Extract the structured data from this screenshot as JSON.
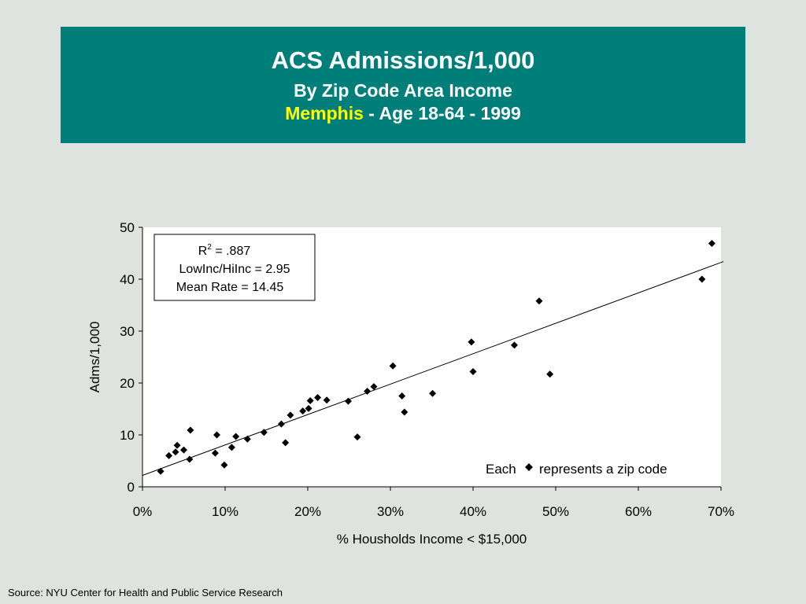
{
  "banner": {
    "title": "ACS Admissions/1,000",
    "subtitle": "By Zip Code Area Income",
    "city": "Memphis",
    "detail": " - Age 18-64 - 1999"
  },
  "source": "Source:  NYU Center for Health and Public Service Research",
  "colors": {
    "banner_bg": "#007f7a",
    "city_text": "#ffff00",
    "page_bg": "#dfe3df"
  },
  "chart_data": {
    "type": "scatter",
    "xlabel": "% Housholds Income < $15,000",
    "ylabel": "Adms/1,000",
    "xlim": [
      0,
      0.7
    ],
    "ylim": [
      0,
      50
    ],
    "x_ticks": [
      "0%",
      "10%",
      "20%",
      "30%",
      "40%",
      "50%",
      "60%",
      "70%"
    ],
    "y_ticks": [
      "0",
      "10",
      "20",
      "30",
      "40",
      "50"
    ],
    "grid": false,
    "points": [
      {
        "x": 0.022,
        "y": 3.0
      },
      {
        "x": 0.032,
        "y": 6.0
      },
      {
        "x": 0.04,
        "y": 6.7
      },
      {
        "x": 0.042,
        "y": 8.0
      },
      {
        "x": 0.05,
        "y": 7.1
      },
      {
        "x": 0.057,
        "y": 5.3
      },
      {
        "x": 0.058,
        "y": 10.9
      },
      {
        "x": 0.088,
        "y": 6.5
      },
      {
        "x": 0.09,
        "y": 10.0
      },
      {
        "x": 0.099,
        "y": 4.2
      },
      {
        "x": 0.108,
        "y": 7.6
      },
      {
        "x": 0.113,
        "y": 9.7
      },
      {
        "x": 0.127,
        "y": 9.2
      },
      {
        "x": 0.147,
        "y": 10.5
      },
      {
        "x": 0.168,
        "y": 12.1
      },
      {
        "x": 0.173,
        "y": 8.5
      },
      {
        "x": 0.179,
        "y": 13.8
      },
      {
        "x": 0.194,
        "y": 14.6
      },
      {
        "x": 0.201,
        "y": 15.1
      },
      {
        "x": 0.203,
        "y": 16.6
      },
      {
        "x": 0.212,
        "y": 17.2
      },
      {
        "x": 0.223,
        "y": 16.7
      },
      {
        "x": 0.249,
        "y": 16.5
      },
      {
        "x": 0.26,
        "y": 9.6
      },
      {
        "x": 0.272,
        "y": 18.4
      },
      {
        "x": 0.28,
        "y": 19.3
      },
      {
        "x": 0.303,
        "y": 23.3
      },
      {
        "x": 0.314,
        "y": 17.5
      },
      {
        "x": 0.317,
        "y": 14.4
      },
      {
        "x": 0.351,
        "y": 18.0
      },
      {
        "x": 0.398,
        "y": 27.9
      },
      {
        "x": 0.4,
        "y": 22.2
      },
      {
        "x": 0.45,
        "y": 27.3
      },
      {
        "x": 0.48,
        "y": 35.8
      },
      {
        "x": 0.493,
        "y": 21.7
      },
      {
        "x": 0.677,
        "y": 40.0
      },
      {
        "x": 0.689,
        "y": 46.9
      }
    ],
    "trendline": {
      "x": [
        0.0,
        0.703
      ],
      "y": [
        2.2,
        43.4
      ]
    },
    "stats_box": {
      "r2_prefix": "R",
      "r2_sup": "2",
      "r2_value": " = .887",
      "ratio": "LowInc/HiInc = 2.95",
      "mean": "Mean Rate = 14.45"
    },
    "note_left": "Each",
    "note_right": "represents a zip code",
    "note_marker": "diamond"
  }
}
